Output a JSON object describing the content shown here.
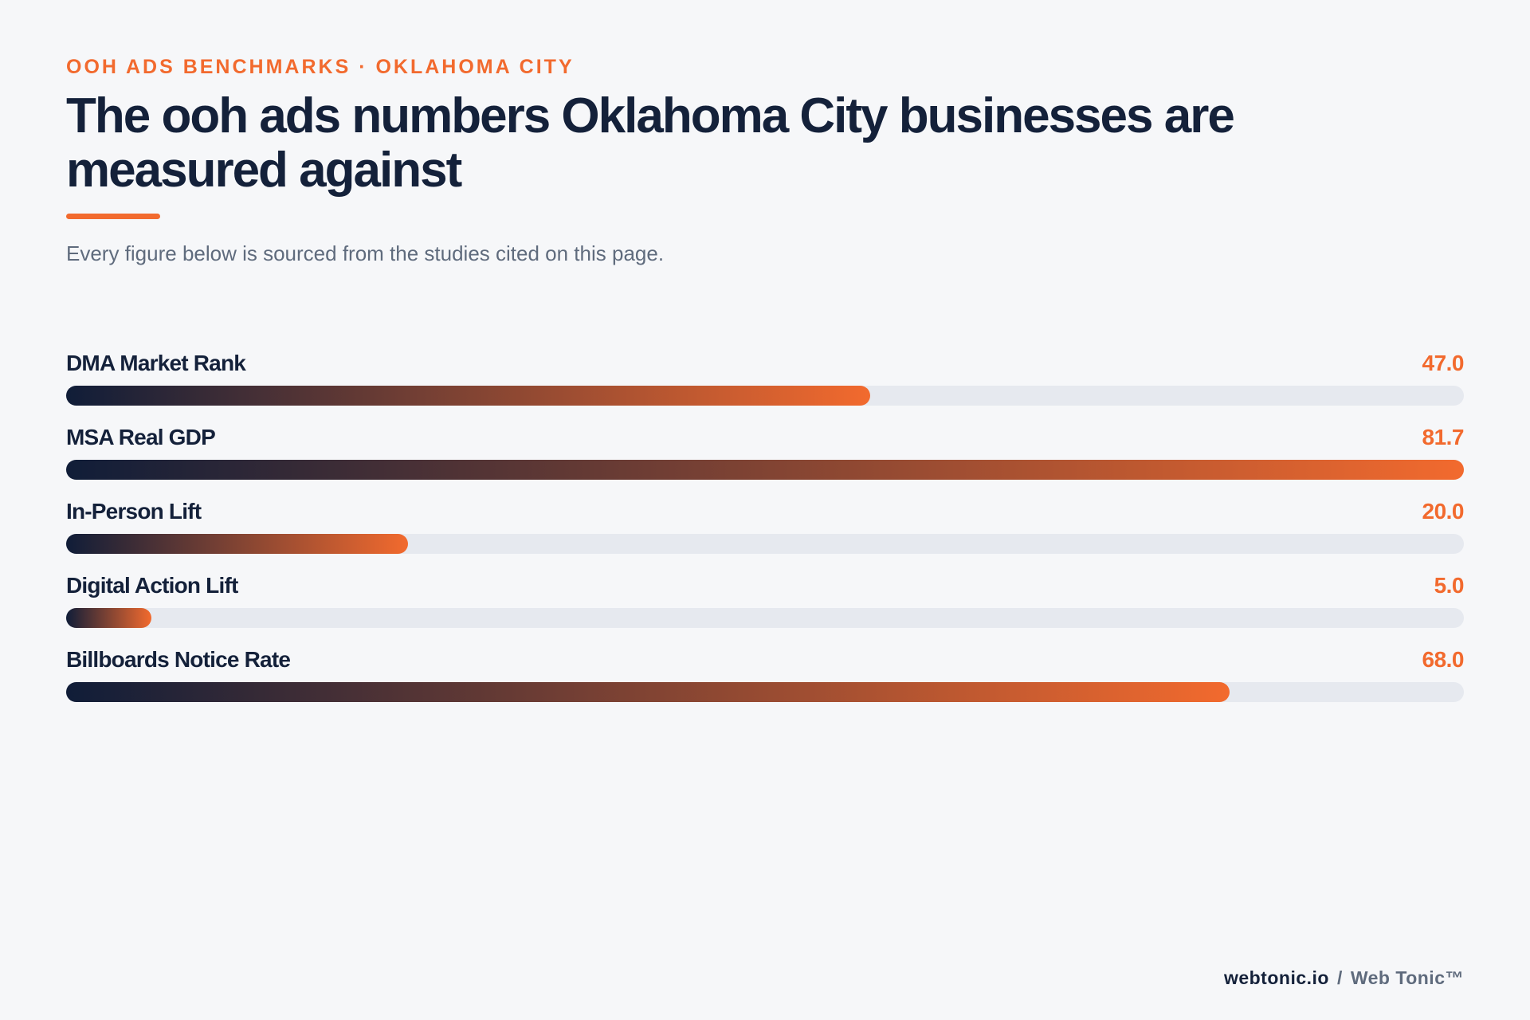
{
  "header": {
    "eyebrow": "OOH ADS BENCHMARKS · OKLAHOMA CITY",
    "title": "The ooh ads numbers Oklahoma City businesses are measured against",
    "subtitle": "Every figure below is sourced from the studies cited on this page."
  },
  "colors": {
    "accent": "#f26a2e",
    "ink": "#14213a",
    "muted": "#5f6b7d",
    "track": "#e6e9ef",
    "background": "#f6f7f9"
  },
  "chart_data": {
    "type": "bar",
    "orientation": "horizontal",
    "categories": [
      "DMA Market Rank",
      "MSA Real GDP",
      "In-Person Lift",
      "Digital Action Lift",
      "Billboards Notice Rate"
    ],
    "values": [
      47.0,
      81.7,
      20.0,
      5.0,
      68.0
    ],
    "value_labels": [
      "47.0",
      "81.7",
      "20.0",
      "5.0",
      "68.0"
    ],
    "xlim": [
      0,
      81.7
    ],
    "grid": false
  },
  "footer": {
    "site": "webtonic.io",
    "separator": "/",
    "brand": "Web Tonic™"
  }
}
